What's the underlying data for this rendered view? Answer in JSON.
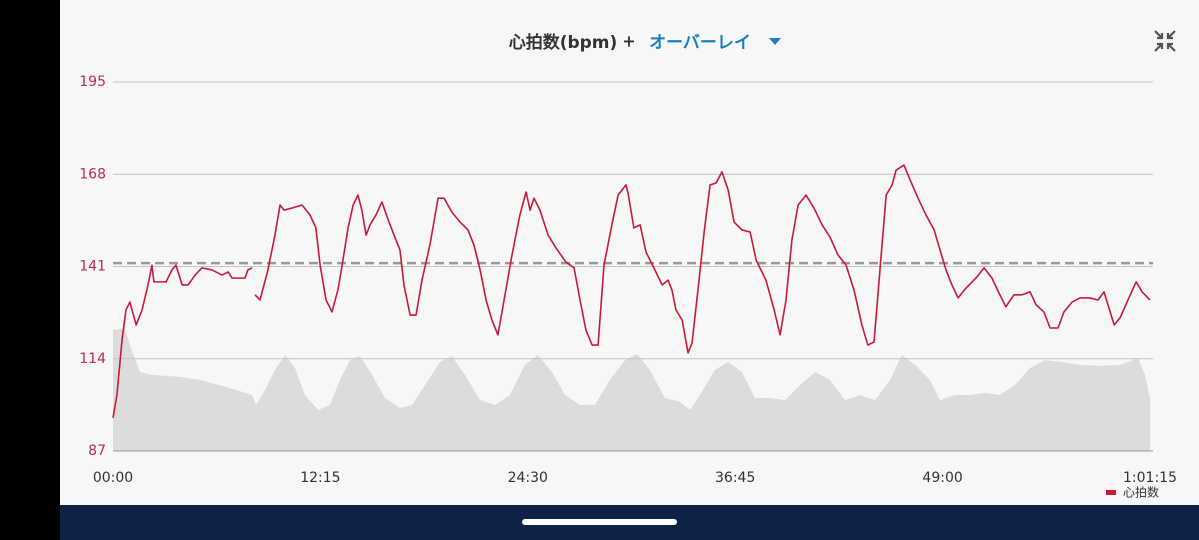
{
  "chart_data": {
    "type": "line",
    "title": "心拍数(bpm)",
    "title_joiner": "+",
    "overlay_selector": "オーバーレイ",
    "x": [
      0,
      14,
      32,
      46,
      60,
      82,
      103,
      124,
      138,
      145,
      159,
      188,
      209,
      223,
      245,
      266,
      291,
      315,
      351,
      386,
      408,
      422,
      468,
      478,
      493,
      496,
      503,
      521,
      549,
      574,
      592,
      606,
      634,
      670,
      698,
      719,
      734,
      755,
      776,
      797,
      815,
      833,
      851,
      868,
      882,
      897,
      911,
      932,
      953,
      975,
      996,
      1017,
      1031,
      1053,
      1074,
      1095,
      1123,
      1152,
      1173,
      1201,
      1230,
      1258,
      1279,
      1301,
      1322,
      1343,
      1364,
      1386,
      1414,
      1442,
      1464,
      1478,
      1492,
      1513,
      1542,
      1570,
      1605,
      1634,
      1655,
      1676,
      1698,
      1719,
      1740,
      1768,
      1790,
      1818,
      1825,
      1846,
      1868,
      1889,
      1917,
      1946,
      1967,
      1981,
      1995,
      2017,
      2038,
      2052,
      2073,
      2095,
      2116,
      2137,
      2158,
      2180,
      2201,
      2229,
      2258,
      2279,
      2314,
      2343,
      2364,
      2385,
      2406,
      2428,
      2456,
      2484,
      2513,
      2541,
      2569,
      2598,
      2626,
      2654,
      2675,
      2697,
      2718,
      2740,
      2761,
      2775,
      2803,
      2825,
      2853,
      2881,
      2910,
      2931,
      2952,
      2973,
      2995,
      3023,
      3058,
      3087,
      3115,
      3143,
      3164,
      3193,
      3221,
      3250,
      3271,
      3299,
      3321,
      3349,
      3370,
      3399,
      3427,
      3462,
      3491,
      3512,
      3526,
      3548,
      3569,
      3597,
      3626,
      3647,
      3675
    ],
    "series": [
      {
        "name": "心拍数",
        "color": "#c8193c",
        "values": [
          96.7,
          103.4,
          119.5,
          128.3,
          130.6,
          123.9,
          128.3,
          135.6,
          141.4,
          136.5,
          136.5,
          136.5,
          140,
          141.4,
          135.6,
          135.6,
          138.5,
          140.6,
          140,
          138.5,
          139.4,
          137.6,
          137.6,
          140,
          140.6,
          null,
          132.7,
          131.2,
          140,
          150.2,
          159,
          157.5,
          158.1,
          159,
          156.1,
          152.3,
          141.4,
          131.2,
          127.7,
          134.1,
          142.9,
          152.3,
          159,
          161.9,
          157.5,
          150.2,
          153.2,
          156.1,
          159.9,
          154.7,
          150.2,
          145.8,
          135.6,
          126.8,
          126.8,
          137,
          147.3,
          161,
          161,
          156.9,
          154,
          151.7,
          147.3,
          140,
          131.2,
          125.3,
          121,
          131.2,
          144.4,
          156.1,
          162.8,
          157.5,
          161,
          157.5,
          150.2,
          146.4,
          142.3,
          140.6,
          131.2,
          122.4,
          118,
          118,
          141.4,
          153.2,
          161.9,
          164.9,
          162.6,
          152.3,
          153.2,
          145.2,
          140.6,
          135.6,
          137,
          134.1,
          128.3,
          125.3,
          115.7,
          118.6,
          134.1,
          151.1,
          164.9,
          165.4,
          168.7,
          163.4,
          154,
          151.7,
          151.1,
          142.9,
          137,
          128.3,
          121,
          131.2,
          148.8,
          159,
          161.9,
          158.1,
          153.2,
          149.6,
          144.4,
          141.4,
          134.1,
          123.9,
          118,
          118.9,
          140,
          161.9,
          164.9,
          169.2,
          170.7,
          166.3,
          161,
          156.1,
          151.7,
          145.8,
          140,
          135.6,
          131.8,
          134.7,
          137.6,
          140.6,
          137.6,
          132.7,
          129.2,
          132.7,
          132.7,
          133.6,
          129.8,
          127.7,
          123,
          123,
          127.7,
          130.6,
          131.8,
          131.8,
          131.2,
          133.6,
          129.8,
          123.9,
          126,
          131.2,
          136.5,
          133.6,
          131.2
        ]
      }
    ],
    "background_area": {
      "color": "#dcdcdc",
      "x": [
        0,
        43,
        60,
        96,
        131,
        237,
        308,
        415,
        493,
        507,
        539,
        574,
        610,
        645,
        680,
        727,
        769,
        804,
        840,
        875,
        918,
        964,
        1017,
        1060,
        1106,
        1159,
        1201,
        1247,
        1301,
        1354,
        1407,
        1460,
        1506,
        1556,
        1602,
        1655,
        1708,
        1761,
        1815,
        1857,
        1903,
        1956,
        2009,
        2045,
        2080,
        2133,
        2180,
        2229,
        2275,
        2328,
        2382,
        2435,
        2488,
        2541,
        2594,
        2647,
        2701,
        2754,
        2796,
        2842,
        2895,
        2931,
        2984,
        3037,
        3090,
        3143,
        3197,
        3250,
        3303,
        3356,
        3427,
        3498,
        3569,
        3633,
        3657,
        3675
      ],
      "values": [
        122.4,
        123,
        118,
        110.1,
        109.3,
        108.7,
        107.8,
        105.4,
        103.4,
        100.5,
        104.9,
        110.7,
        115.1,
        111.3,
        103.4,
        99,
        100.5,
        107.8,
        113.6,
        114.8,
        109.3,
        102.5,
        99.6,
        100.5,
        106.3,
        113.1,
        114.8,
        109.3,
        101.9,
        100.5,
        103.4,
        112.2,
        115.1,
        110.1,
        103.4,
        100.5,
        100.5,
        107.8,
        113.6,
        115.4,
        110.7,
        102.5,
        101.4,
        99,
        103.4,
        110.7,
        113.1,
        110.1,
        102.5,
        102.5,
        101.9,
        106.3,
        110.1,
        107.8,
        101.9,
        103.4,
        101.9,
        107.8,
        115.1,
        112.2,
        107.8,
        101.9,
        103.4,
        103.4,
        104,
        103.4,
        106.3,
        111.3,
        113.6,
        113.1,
        112.2,
        111.9,
        112.2,
        114.2,
        109.3,
        102.5
      ]
    },
    "reference_line": 142,
    "xlim": [
      0,
      3675
    ],
    "xticks": [
      {
        "value": 0,
        "label": "00:00"
      },
      {
        "value": 735,
        "label": "12:15"
      },
      {
        "value": 1470,
        "label": "24:30"
      },
      {
        "value": 2205,
        "label": "36:45"
      },
      {
        "value": 2940,
        "label": "49:00"
      },
      {
        "value": 3675,
        "label": "1:01:15"
      }
    ],
    "ylim": [
      87,
      195
    ],
    "yticks": [
      87,
      114,
      141,
      168,
      195
    ],
    "grid": true,
    "legend": "bottom-right"
  }
}
